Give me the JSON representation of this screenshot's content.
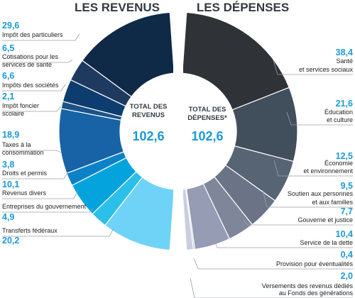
{
  "chart_data": [
    {
      "type": "pie",
      "title": "LES REVENUS",
      "center_label": "TOTAL DES REVENUS",
      "center_label_lines": [
        "TOTAL DES",
        "REVENUS"
      ],
      "total": "102,6",
      "slices": [
        {
          "label": "Impôt des particuliers",
          "label_lines": [
            "Impôt des particuliers"
          ],
          "value": 29.6,
          "value_text": "29,6",
          "color": "#0f2a47"
        },
        {
          "label": "Cotisations pour les services de santé",
          "label_lines": [
            "Cotisations pour les",
            "services de santé"
          ],
          "value": 6.5,
          "value_text": "6,5",
          "color": "#1e3a5f"
        },
        {
          "label": "Impôts des sociétés",
          "label_lines": [
            "Impôts des sociétés"
          ],
          "value": 6.6,
          "value_text": "6,6",
          "color": "#0c3d6e"
        },
        {
          "label": "Impôt foncier scolaire",
          "label_lines": [
            "Impôt foncier",
            "scolaire"
          ],
          "value": 2.1,
          "value_text": "2,1",
          "color": "#1b5288"
        },
        {
          "label": "Taxes à la consommation",
          "label_lines": [
            "Taxes à la",
            "consommation"
          ],
          "value": 18.9,
          "value_text": "18,9",
          "color": "#1763a6"
        },
        {
          "label": "Droits et permis",
          "label_lines": [
            "Droits et permis"
          ],
          "value": 3.8,
          "value_text": "3,8",
          "color": "#0b82c7"
        },
        {
          "label": "Revenus divers",
          "label_lines": [
            "Revenus divers"
          ],
          "value": 10.1,
          "value_text": "10,1",
          "color": "#05a3de"
        },
        {
          "label": "Entreprises du gouvernement",
          "label_lines": [
            "Entreprises du gouvernement"
          ],
          "value": 4.9,
          "value_text": "4,9",
          "color": "#2bbfea"
        },
        {
          "label": "Transferts fédéraux",
          "label_lines": [
            "Transferts fédéraux"
          ],
          "value": 20.2,
          "value_text": "20,2",
          "color": "#6fd3f8"
        }
      ]
    },
    {
      "type": "pie",
      "title": "LES DÉPENSES",
      "center_label": "TOTAL DES DÉPENSES*",
      "center_label_lines": [
        "TOTAL DES",
        "DÉPENSES*"
      ],
      "total": "102,6",
      "slices": [
        {
          "label": "Santé et services sociaux",
          "label_lines": [
            "Santé",
            "et services sociaux"
          ],
          "value": 38.4,
          "value_text": "38,4",
          "color": "#2f3237"
        },
        {
          "label": "Éducation et culture",
          "label_lines": [
            "Éducation",
            "et culture"
          ],
          "value": 21.6,
          "value_text": "21,6",
          "color": "#414e5c"
        },
        {
          "label": "Économie et environnement",
          "label_lines": [
            "Économie",
            "et environnement"
          ],
          "value": 12.5,
          "value_text": "12,5",
          "color": "#566474"
        },
        {
          "label": "Soutien aux personnes et aux familles",
          "label_lines": [
            "Soutien aux personnes",
            "et aux familles"
          ],
          "value": 9.5,
          "value_text": "9,5",
          "color": "#6a7486"
        },
        {
          "label": "Gouverne et justice",
          "label_lines": [
            "Gouverne et justice"
          ],
          "value": 7.7,
          "value_text": "7,7",
          "color": "#7f8699"
        },
        {
          "label": "Service de la dette",
          "label_lines": [
            "Service de la dette"
          ],
          "value": 10.4,
          "value_text": "10,4",
          "color": "#959cb3"
        },
        {
          "label": "Provision pour éventualités",
          "label_lines": [
            "Provision pour éventualités"
          ],
          "value": 0.4,
          "value_text": "0,4",
          "color": "#aab0c4"
        },
        {
          "label": "Versements des revenus dédiés au Fonds des générations",
          "label_lines": [
            "Versements des revenus dédiés",
            "au Fonds des générations"
          ],
          "value": 2.0,
          "value_text": "2,0",
          "color": "#c9cfdf"
        }
      ]
    }
  ]
}
